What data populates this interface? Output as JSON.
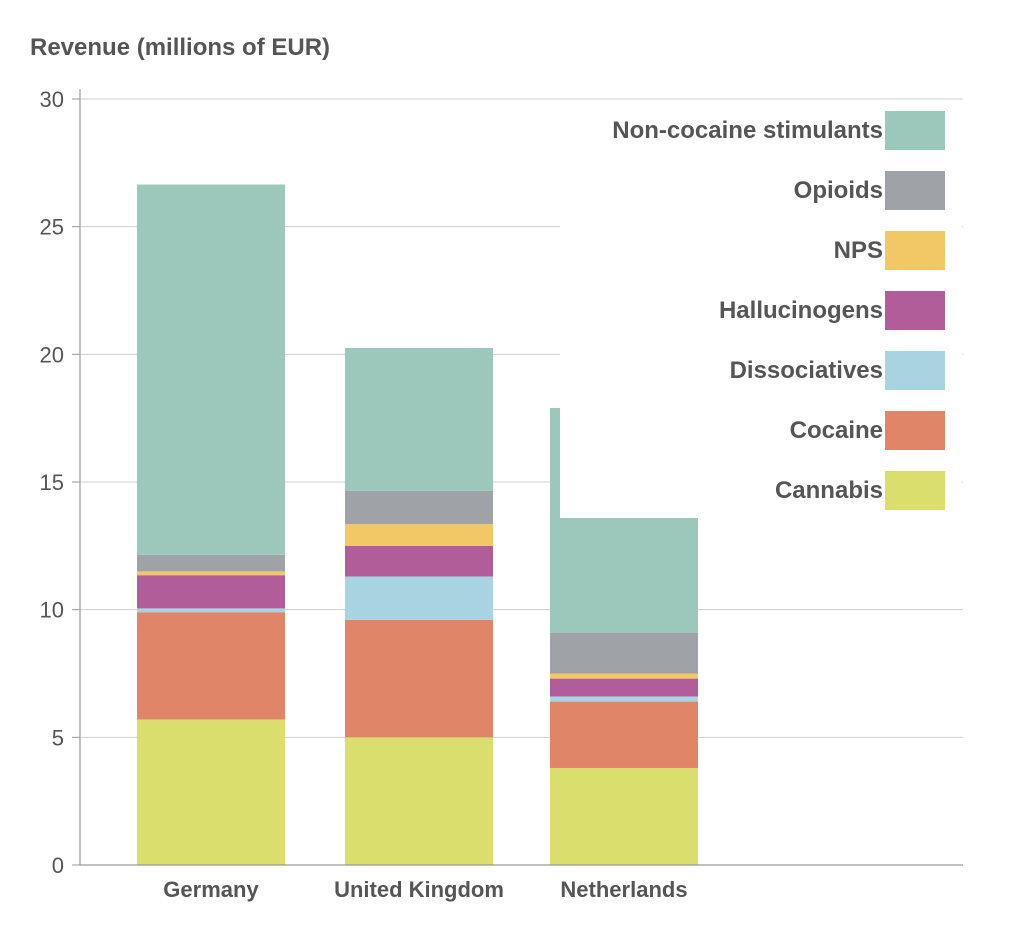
{
  "chart_data": {
    "type": "bar",
    "stacked": true,
    "title": "",
    "xlabel": "",
    "ylabel": "Revenue (millions of EUR)",
    "ylim": [
      0,
      30
    ],
    "yticks": [
      0,
      5,
      10,
      15,
      20,
      25,
      30
    ],
    "grid": true,
    "legend_position": "top-right",
    "categories": [
      "Germany",
      "United Kingdom",
      "Netherlands"
    ],
    "series": [
      {
        "name": "Cannabis",
        "color": "#d9de6c",
        "values": [
          5.7,
          5.0,
          3.8
        ]
      },
      {
        "name": "Cocaine",
        "color": "#e08567",
        "values": [
          4.2,
          4.6,
          2.6
        ]
      },
      {
        "name": "Dissociatives",
        "color": "#a8d4e2",
        "values": [
          0.15,
          1.7,
          0.2
        ]
      },
      {
        "name": "Hallucinogens",
        "color": "#b05d9a",
        "values": [
          1.3,
          1.2,
          0.7
        ]
      },
      {
        "name": "NPS",
        "color": "#f2c765",
        "values": [
          0.15,
          0.85,
          0.2
        ]
      },
      {
        "name": "Opioids",
        "color": "#9fa2a6",
        "values": [
          0.65,
          1.3,
          1.6
        ]
      },
      {
        "name": "Non-cocaine stimulants",
        "color": "#9bc8bb",
        "values": [
          14.5,
          5.6,
          8.8
        ]
      }
    ],
    "legend_order": [
      "Non-cocaine stimulants",
      "Opioids",
      "NPS",
      "Hallucinogens",
      "Dissociatives",
      "Cocaine",
      "Cannabis"
    ]
  }
}
